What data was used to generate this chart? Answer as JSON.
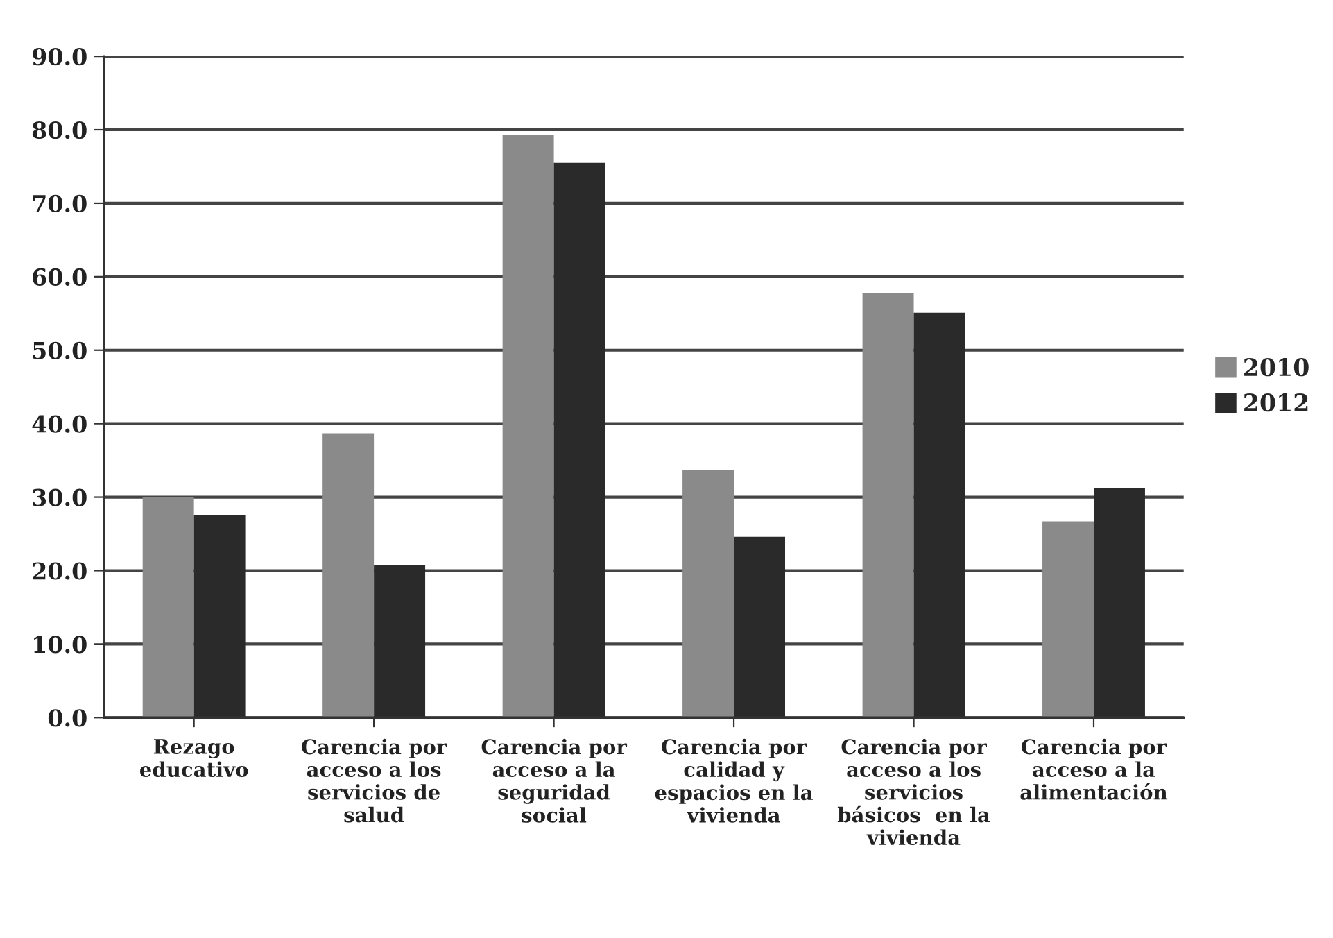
{
  "chart_data": {
    "type": "bar",
    "categories": [
      "Rezago\neducativo",
      "Carencia por\nacceso a los\nservicios de\nsalud",
      "Carencia por\nacceso a la\nseguridad\nsocial",
      "Carencia por\ncalidad y\nespacios en la\nvivienda",
      "Carencia por\nacceso a los\nservicios\nbásicos  en la\nvivienda",
      "Carencia por\nacceso a la\nalimentación"
    ],
    "series": [
      {
        "name": "2010",
        "color": "#8a8a8a",
        "values": [
          30.0,
          38.7,
          79.3,
          33.7,
          57.8,
          26.7
        ]
      },
      {
        "name": "2012",
        "color": "#2a2a2a",
        "values": [
          27.5,
          20.8,
          75.5,
          24.6,
          55.1,
          31.2
        ]
      }
    ],
    "ylim": [
      0,
      90
    ],
    "yticks": [
      {
        "value": 0,
        "label": "0.0"
      },
      {
        "value": 10,
        "label": "10.0"
      },
      {
        "value": 20,
        "label": "20.0"
      },
      {
        "value": 30,
        "label": "30.0"
      },
      {
        "value": 40,
        "label": "40.0"
      },
      {
        "value": 50,
        "label": "50.0"
      },
      {
        "value": 60,
        "label": "60.0"
      },
      {
        "value": 70,
        "label": "70.0"
      },
      {
        "value": 80,
        "label": "80.0"
      },
      {
        "value": 90,
        "label": "90.0"
      }
    ],
    "grid": "y",
    "legend": "right"
  }
}
